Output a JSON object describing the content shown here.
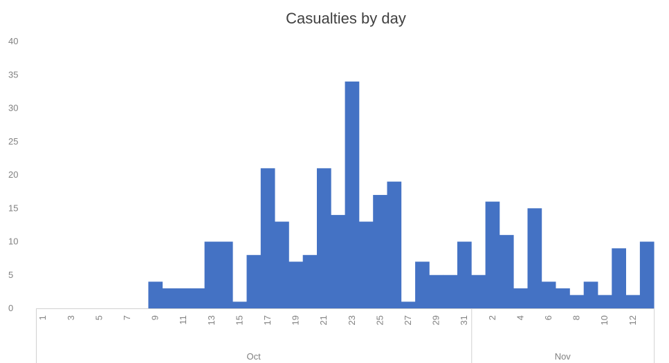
{
  "chart_data": {
    "type": "bar",
    "title": "Casualties by day",
    "xlabel": "",
    "ylabel": "",
    "ylim": [
      0,
      40
    ],
    "yticks": [
      "0",
      "5",
      "10",
      "15",
      "20",
      "25",
      "30",
      "35",
      "40"
    ],
    "grid": false,
    "legend": "none",
    "bar_color": "#4472C4",
    "groups": [
      {
        "label": "Oct",
        "start": 0,
        "count": 31
      },
      {
        "label": "Nov",
        "start": 31,
        "count": 13
      }
    ],
    "categories": [
      "1",
      "2",
      "3",
      "4",
      "5",
      "6",
      "7",
      "8",
      "9",
      "10",
      "11",
      "12",
      "13",
      "14",
      "15",
      "16",
      "17",
      "18",
      "19",
      "20",
      "21",
      "22",
      "23",
      "24",
      "25",
      "26",
      "27",
      "28",
      "29",
      "30",
      "31",
      "1",
      "2",
      "3",
      "4",
      "5",
      "6",
      "7",
      "8",
      "9",
      "10",
      "11",
      "12",
      "13"
    ],
    "tick_labels": [
      "1",
      "",
      "3",
      "",
      "5",
      "",
      "7",
      "",
      "9",
      "",
      "11",
      "",
      "13",
      "",
      "15",
      "",
      "17",
      "",
      "19",
      "",
      "21",
      "",
      "23",
      "",
      "25",
      "",
      "27",
      "",
      "29",
      "",
      "31",
      "",
      "2",
      "",
      "4",
      "",
      "6",
      "",
      "8",
      "",
      "10",
      "",
      "12",
      ""
    ],
    "values": [
      0,
      0,
      0,
      0,
      0,
      0,
      0,
      0,
      4,
      3,
      3,
      3,
      10,
      10,
      1,
      8,
      21,
      13,
      7,
      8,
      21,
      14,
      34,
      13,
      17,
      19,
      1,
      7,
      5,
      5,
      10,
      5,
      16,
      11,
      3,
      15,
      4,
      3,
      2,
      4,
      2,
      9,
      2,
      10
    ]
  }
}
